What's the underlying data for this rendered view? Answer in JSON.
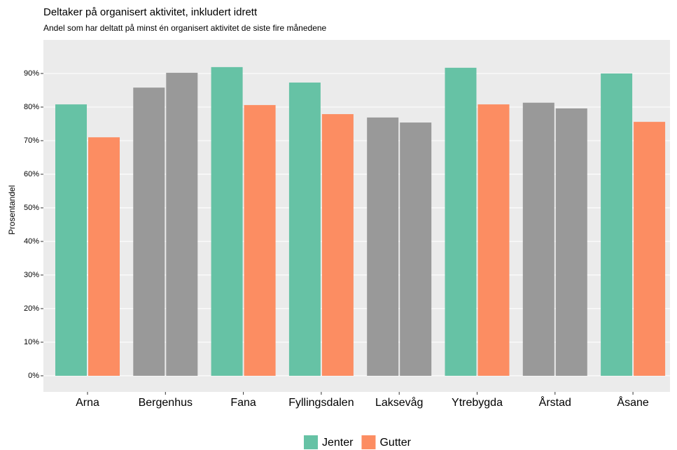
{
  "chart_data": {
    "type": "grouped_bar",
    "title": "Deltaker på organisert aktivitet, inkludert idrett",
    "subtitle": "Andel som har deltatt på minst én organisert aktivitet de siste fire månedene",
    "y_label": "Prosentandel",
    "categories": [
      "Arna",
      "Bergenhus",
      "Fana",
      "Fyllingsdalen",
      "Laksevåg",
      "Ytrebygda",
      "Årstad",
      "Åsane"
    ],
    "series": [
      {
        "name": "Jenter",
        "color": "#66c2a5",
        "bar_colors": [
          "#66c2a5",
          "#999999",
          "#66c2a5",
          "#66c2a5",
          "#999999",
          "#66c2a5",
          "#999999",
          "#66c2a5"
        ],
        "values": [
          80.8,
          85.8,
          91.9,
          87.3,
          76.9,
          91.7,
          81.3,
          90.0
        ]
      },
      {
        "name": "Gutter",
        "color": "#fc8d62",
        "bar_colors": [
          "#fc8d62",
          "#999999",
          "#fc8d62",
          "#fc8d62",
          "#999999",
          "#fc8d62",
          "#999999",
          "#fc8d62"
        ],
        "values": [
          71.0,
          90.2,
          80.6,
          77.9,
          75.4,
          80.8,
          79.6,
          75.6
        ]
      }
    ],
    "ylim": [
      -4.8,
      100
    ],
    "yticks": [
      {
        "value": 0,
        "label": "0%"
      },
      {
        "value": 10,
        "label": "10%"
      },
      {
        "value": 20,
        "label": "20%"
      },
      {
        "value": 30,
        "label": "30%"
      },
      {
        "value": 40,
        "label": "40%"
      },
      {
        "value": 50,
        "label": "50%"
      },
      {
        "value": 60,
        "label": "60%"
      },
      {
        "value": 70,
        "label": "70%"
      },
      {
        "value": 80,
        "label": "80%"
      },
      {
        "value": 90,
        "label": "90%"
      }
    ],
    "grid": true,
    "legend": "bottom"
  }
}
